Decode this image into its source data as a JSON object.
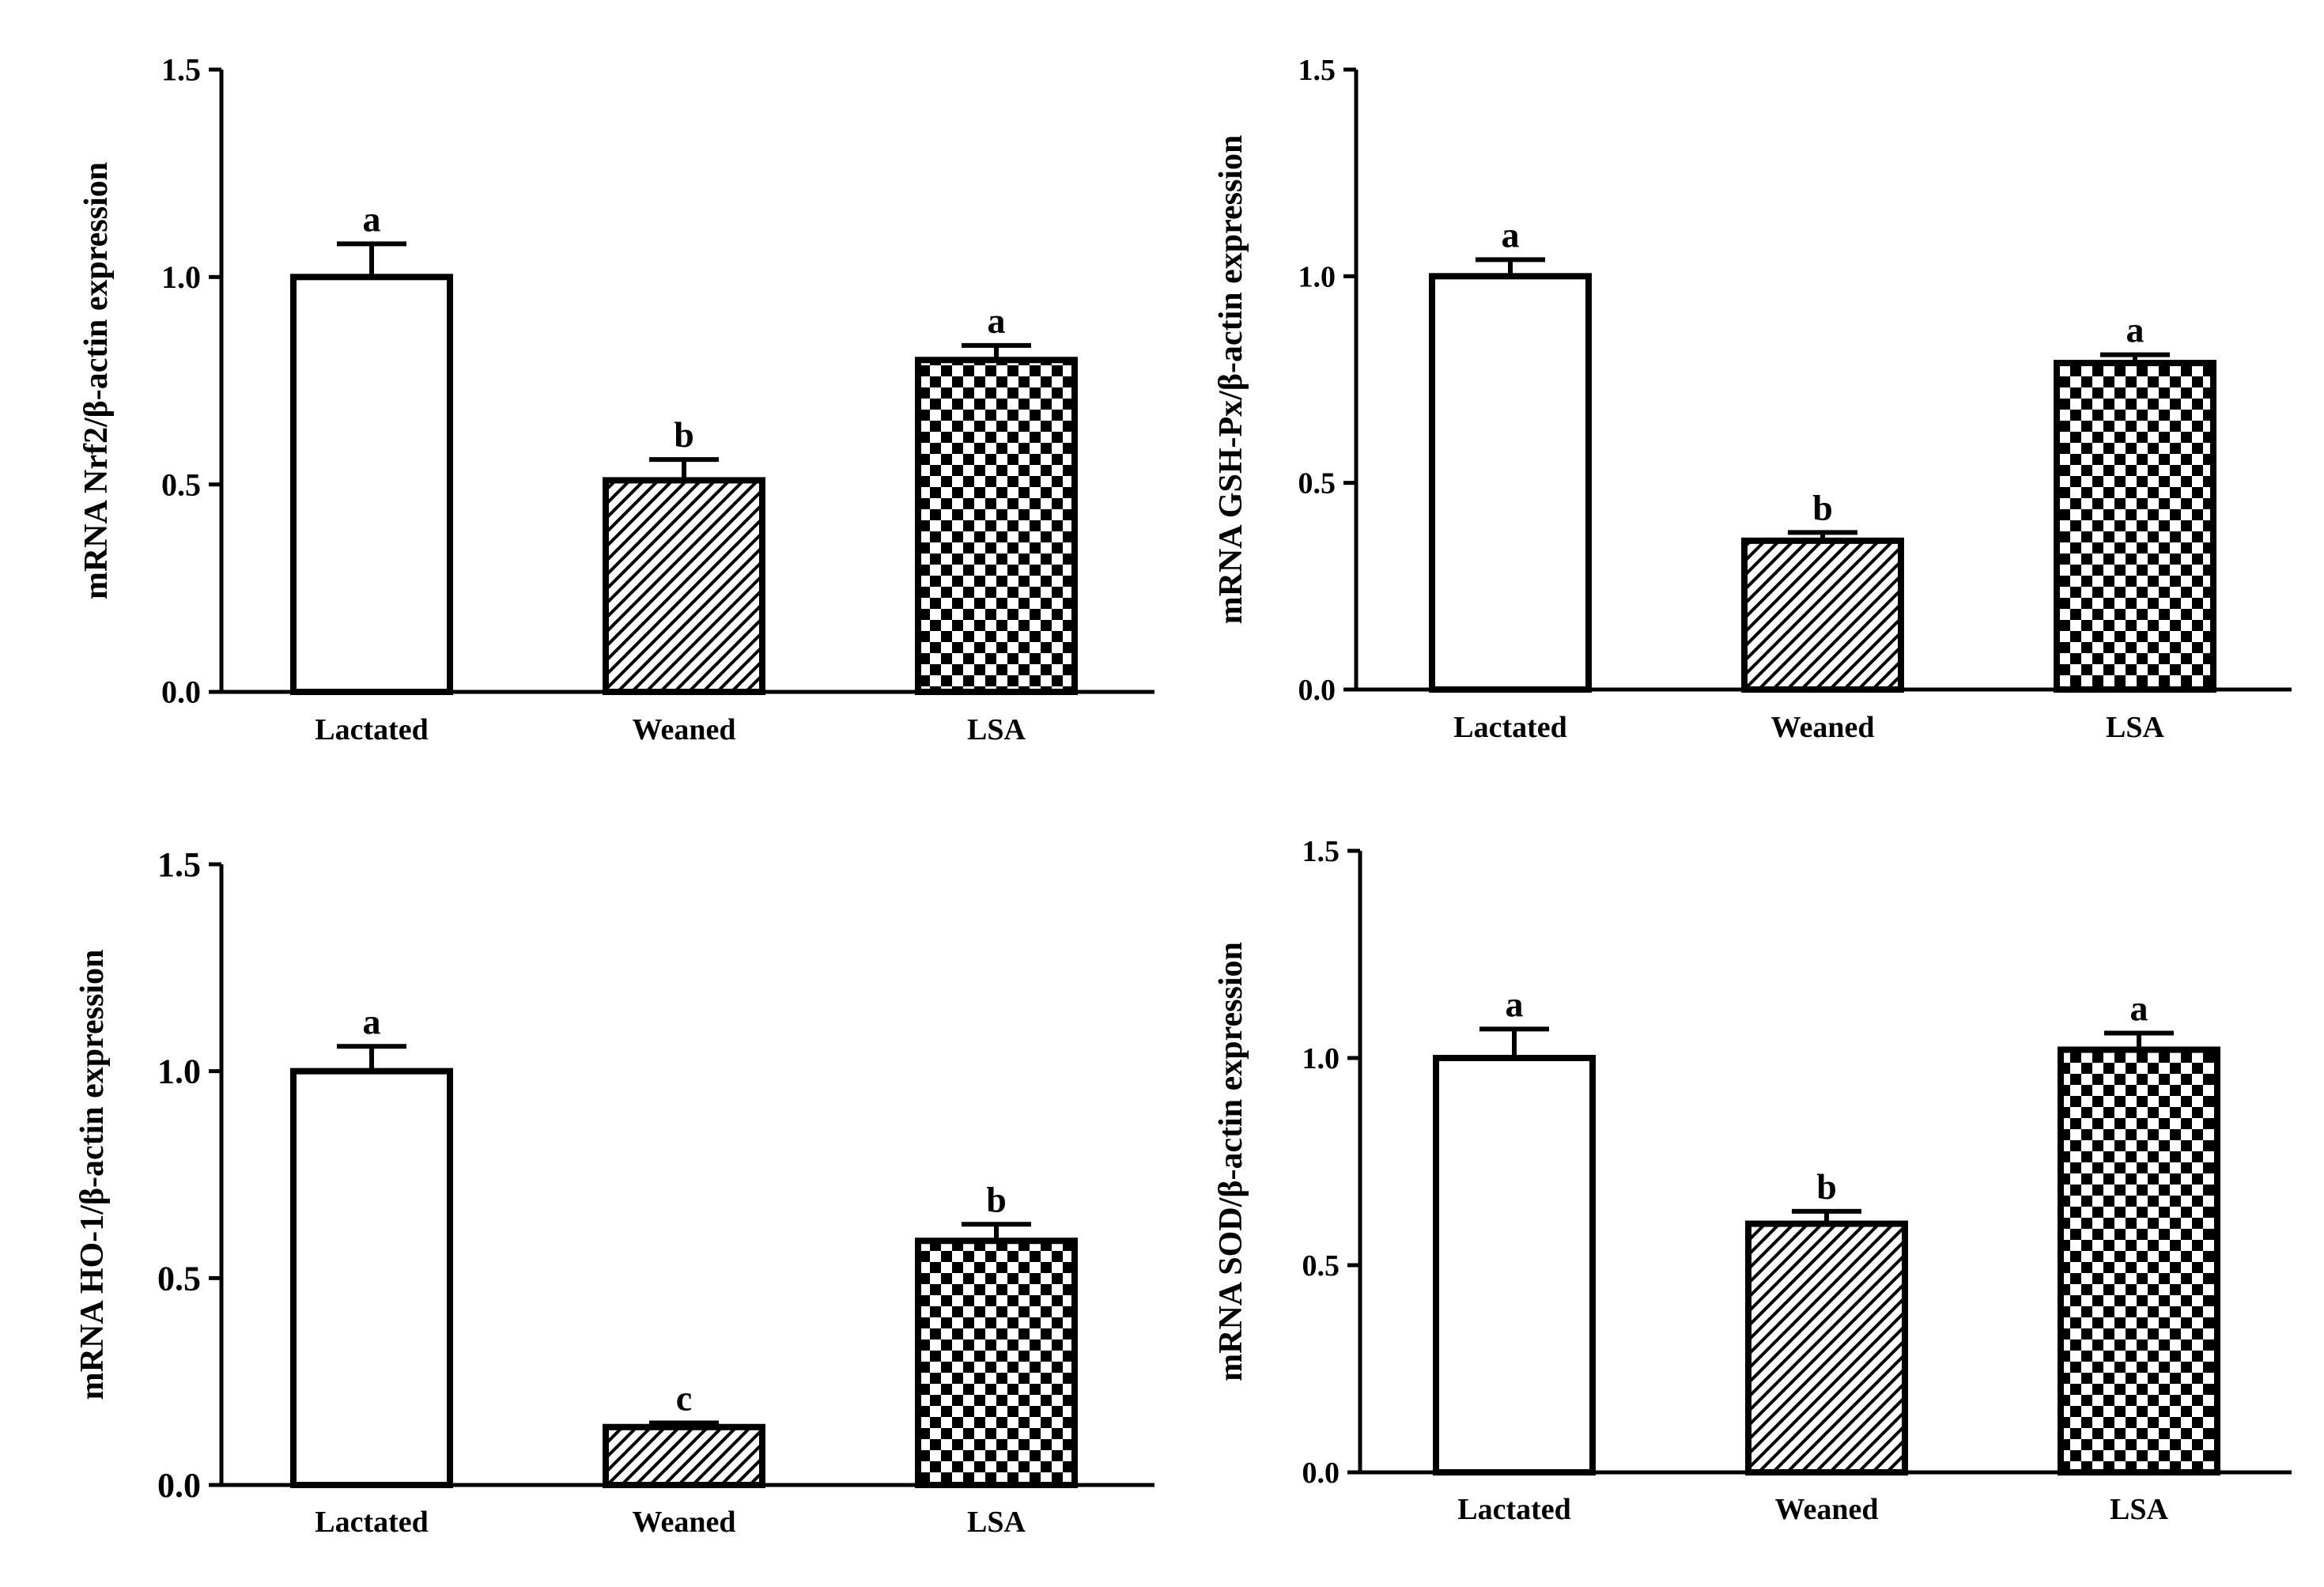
{
  "chart_data": [
    {
      "type": "bar",
      "panel": "top-left",
      "title": "",
      "xlabel": "",
      "ylabel": "mRNA Nrf2/β-actin expression",
      "ylim": [
        0,
        1.5
      ],
      "yticks": [
        "0.0",
        "0.5",
        "1.0",
        "1.5"
      ],
      "categories": [
        "Lactated",
        "Weaned",
        "LSA"
      ],
      "values": [
        1.0,
        0.51,
        0.8
      ],
      "errors": [
        0.08,
        0.05,
        0.035
      ],
      "letters": [
        "a",
        "b",
        "a"
      ],
      "patterns": [
        "empty",
        "hatch",
        "checker"
      ]
    },
    {
      "type": "bar",
      "panel": "top-right",
      "title": "",
      "xlabel": "",
      "ylabel": "mRNA GSH-Px/β-actin expression",
      "ylim": [
        0,
        1.5
      ],
      "yticks": [
        "0.0",
        "0.5",
        "1.0",
        "1.5"
      ],
      "categories": [
        "Lactated",
        "Weaned",
        "LSA"
      ],
      "values": [
        1.0,
        0.36,
        0.79
      ],
      "errors": [
        0.04,
        0.02,
        0.02
      ],
      "letters": [
        "a",
        "b",
        "a"
      ],
      "patterns": [
        "empty",
        "hatch",
        "checker"
      ]
    },
    {
      "type": "bar",
      "panel": "bottom-left",
      "title": "",
      "xlabel": "",
      "ylabel": "mRNA HO-1/β-actin expression",
      "ylim": [
        0,
        1.5
      ],
      "yticks": [
        "0.0",
        "0.5",
        "1.0",
        "1.5"
      ],
      "categories": [
        "Lactated",
        "Weaned",
        "LSA"
      ],
      "values": [
        1.0,
        0.14,
        0.59
      ],
      "errors": [
        0.06,
        0.01,
        0.04
      ],
      "letters": [
        "a",
        "c",
        "b"
      ],
      "patterns": [
        "empty",
        "hatch",
        "checker"
      ]
    },
    {
      "type": "bar",
      "panel": "bottom-right",
      "title": "",
      "xlabel": "",
      "ylabel": "mRNA SOD/β-actin expression",
      "ylim": [
        0,
        1.5
      ],
      "yticks": [
        "0.0",
        "0.5",
        "1.0",
        "1.5"
      ],
      "categories": [
        "Lactated",
        "Weaned",
        "LSA"
      ],
      "values": [
        1.0,
        0.6,
        1.02
      ],
      "errors": [
        0.07,
        0.03,
        0.04
      ],
      "letters": [
        "a",
        "b",
        "a"
      ],
      "patterns": [
        "empty",
        "hatch",
        "checker"
      ]
    }
  ]
}
